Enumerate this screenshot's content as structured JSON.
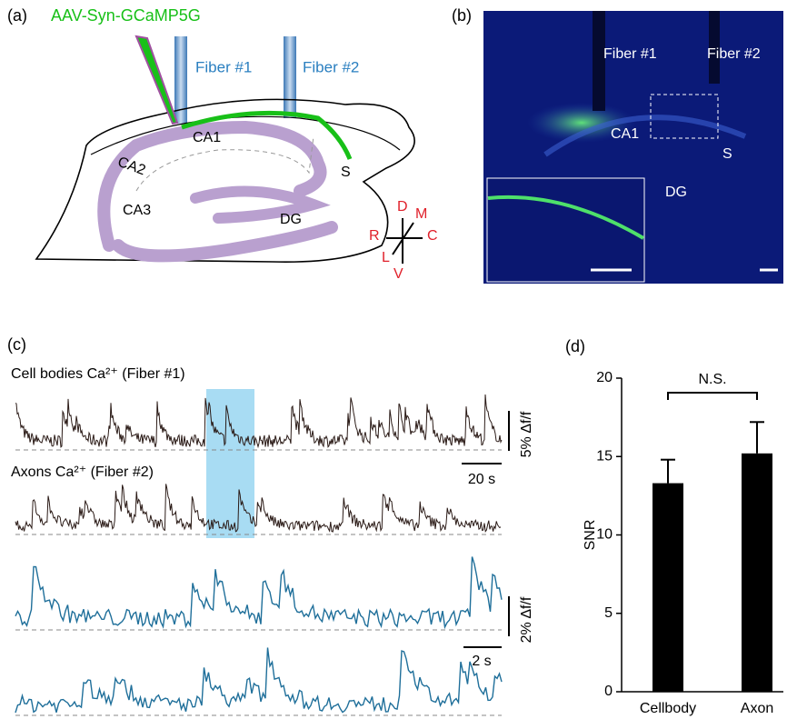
{
  "panel_a": {
    "label": "(a)",
    "virus": "AAV-Syn-GCaMP5G",
    "fiber1": "Fiber #1",
    "fiber2": "Fiber #2",
    "regions": {
      "ca1": "CA1",
      "ca2": "CA2",
      "ca3": "CA3",
      "dg": "DG",
      "s": "S"
    },
    "compass": {
      "d": "D",
      "m": "M",
      "r": "R",
      "c": "C",
      "l": "L",
      "v": "V"
    }
  },
  "panel_b": {
    "label": "(b)",
    "fiber1": "Fiber #1",
    "fiber2": "Fiber #2",
    "ca1": "CA1",
    "s": "S",
    "dg": "DG"
  },
  "panel_c": {
    "label": "(c)",
    "trace1": "Cell bodies Ca²⁺ (Fiber #1)",
    "trace2": "Axons Ca²⁺ (Fiber #2)",
    "scale_y1": "5% Δf/f",
    "scale_x1": "20 s",
    "scale_y2": "2% Δf/f",
    "scale_x2": "2 s"
  },
  "panel_d": {
    "label": "(d)"
  },
  "chart_data": {
    "type": "bar",
    "ylabel": "SNR",
    "categories": [
      "Cellbody",
      "Axon"
    ],
    "values": [
      13.3,
      15.2
    ],
    "errors": [
      1.5,
      2.0
    ],
    "color": "#000000",
    "ylim": [
      0,
      20
    ],
    "yticks": [
      0,
      5,
      10,
      15,
      20
    ],
    "annotation": "N.S."
  }
}
